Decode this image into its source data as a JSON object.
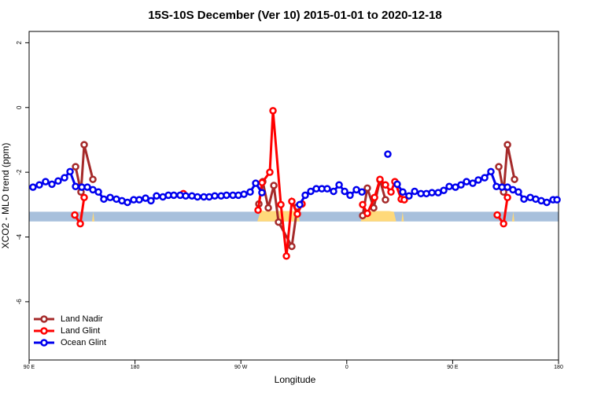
{
  "chart_data": {
    "type": "line",
    "title": "15S-10S December (Ver 10)   2015-01-01 to 2020-12-18",
    "xlabel": "Longitude",
    "ylabel": "XCO2 - MLO trend (ppm)",
    "xlim": [
      90,
      540
    ],
    "xticks": [
      {
        "value": 90,
        "label": "90 E"
      },
      {
        "value": 180,
        "label": "180"
      },
      {
        "value": 270,
        "label": "90 W"
      },
      {
        "value": 360,
        "label": "0"
      },
      {
        "value": 450,
        "label": "90 E"
      },
      {
        "value": 540,
        "label": "180"
      }
    ],
    "ylim": [
      -7.8,
      2.35
    ],
    "yticks": [
      2,
      0,
      -2,
      -4,
      -6
    ],
    "legend": "bottom-left",
    "band": {
      "color": "#a8c0dc",
      "ylim": [
        -3.52,
        -3.22
      ]
    },
    "land": {
      "color": "#ffd97a",
      "pieces": [
        {
          "x": [
            284,
            287,
            290,
            315,
            318,
            320
          ],
          "values": [
            -3.52,
            -3.17,
            -3.2,
            -3.2,
            -3.17,
            -3.52
          ]
        },
        {
          "x": [
            372,
            374,
            378,
            396,
            400,
            402
          ],
          "values": [
            -3.52,
            -3.22,
            -3.2,
            -3.2,
            -3.22,
            -3.52
          ]
        },
        {
          "x": [
            143.5,
            144.5,
            145.5
          ],
          "values": [
            -3.52,
            -3.22,
            -3.52
          ]
        },
        {
          "x": [
            406.5,
            407.5,
            408.5
          ],
          "values": [
            -3.52,
            -3.22,
            -3.52
          ]
        },
        {
          "x": [
            500.5,
            501.5,
            502.5
          ],
          "values": [
            -3.52,
            -3.22,
            -3.52
          ]
        }
      ]
    },
    "series": [
      {
        "name": "Land Nadir",
        "color": "#a52a2a",
        "pieces": [
          {
            "x": [
              129.5,
              134.1,
              136.8,
              144.2
            ],
            "values": [
              -1.83,
              -2.61,
              -1.15,
              -2.22
            ]
          },
          {
            "x": [
              285.3,
              288.6,
              293.3,
              298.0,
              302.0,
              313.3,
              318.0
            ],
            "values": [
              -2.98,
              -2.29,
              -3.1,
              -2.41,
              -3.54,
              -4.29,
              -3.07
            ]
          },
          {
            "x": [
              373.5,
              377.5,
              382.9,
              388.2,
              392.9
            ],
            "values": [
              -3.34,
              -2.49,
              -3.1,
              -2.24,
              -2.85
            ]
          },
          {
            "x": [
              489.2,
              493.3,
              496.6,
              502.6
            ],
            "values": [
              -1.83,
              -2.61,
              -1.15,
              -2.22
            ]
          }
        ]
      },
      {
        "name": "Land Glint",
        "color": "#ff0000",
        "pieces": [
          {
            "x": [
              128.8,
              133.5,
              136.8
            ],
            "values": [
              -3.32,
              -3.59,
              -2.78
            ]
          },
          {
            "x": [
              221.1
            ],
            "values": [
              -2.66
            ]
          },
          {
            "x": [
              284.6,
              288.0,
              294.6,
              297.3,
              304.0,
              308.7,
              313.3,
              318.0,
              322.0
            ],
            "values": [
              -3.17,
              -2.32,
              -2.0,
              -0.1,
              -3.0,
              -4.59,
              -2.9,
              -3.29,
              -2.98
            ]
          },
          {
            "x": [
              373.5,
              377.5,
              383.6,
              388.2,
              392.9,
              397.6,
              400.9,
              406.3,
              408.9
            ],
            "values": [
              -3.0,
              -3.27,
              -2.78,
              -2.22,
              -2.39,
              -2.61,
              -2.29,
              -2.83,
              -2.85
            ]
          },
          {
            "x": [
              487.9,
              493.3,
              496.6
            ],
            "values": [
              -3.32,
              -3.59,
              -2.78
            ]
          }
        ]
      },
      {
        "name": "Ocean Glint",
        "color": "#0000ee",
        "pieces": [
          {
            "x": [
              93.3,
              98.7,
              104.0,
              109.4,
              114.7,
              120.1,
              124.8,
              129.5,
              134.8,
              139.5,
              144.2,
              148.9,
              153.5,
              158.9,
              164.2,
              168.9,
              173.6,
              178.9,
              183.6,
              189.0,
              193.6,
              198.3,
              203.7,
              208.4,
              213.0,
              218.4,
              223.1,
              228.4,
              233.1,
              238.5,
              243.1,
              247.8,
              253.2,
              257.8,
              263.2,
              267.9,
              272.6,
              277.9,
              282.6,
              287.9
            ],
            "values": [
              -2.46,
              -2.39,
              -2.29,
              -2.37,
              -2.27,
              -2.17,
              -1.98,
              -2.44,
              -2.46,
              -2.46,
              -2.54,
              -2.61,
              -2.83,
              -2.78,
              -2.83,
              -2.88,
              -2.93,
              -2.85,
              -2.85,
              -2.8,
              -2.88,
              -2.73,
              -2.76,
              -2.71,
              -2.71,
              -2.71,
              -2.73,
              -2.73,
              -2.76,
              -2.76,
              -2.76,
              -2.73,
              -2.73,
              -2.71,
              -2.71,
              -2.71,
              -2.68,
              -2.61,
              -2.34,
              -2.63
            ]
          },
          {
            "x": [
              320.0,
              324.7,
              329.4,
              334.1,
              338.8,
              343.4,
              348.8,
              353.5,
              358.2,
              362.8,
              368.2,
              372.9
            ],
            "values": [
              -3.0,
              -2.71,
              -2.59,
              -2.51,
              -2.51,
              -2.51,
              -2.59,
              -2.39,
              -2.59,
              -2.71,
              -2.54,
              -2.61
            ]
          },
          {
            "x": [
              394.9
            ],
            "values": [
              -1.44
            ]
          },
          {
            "x": [
              402.9,
              407.6,
              412.9,
              417.7,
              423.0,
              427.7,
              432.4,
              437.7,
              442.4,
              447.1,
              452.4,
              457.1,
              461.8,
              467.1,
              471.8,
              477.2,
              482.5,
              487.2,
              491.9,
              496.6,
              501.2,
              505.9,
              510.6,
              516.0,
              520.6,
              525.3,
              530.0,
              535.4,
              538.7
            ],
            "values": [
              -2.37,
              -2.61,
              -2.73,
              -2.59,
              -2.66,
              -2.66,
              -2.63,
              -2.63,
              -2.56,
              -2.44,
              -2.46,
              -2.39,
              -2.29,
              -2.34,
              -2.24,
              -2.17,
              -1.98,
              -2.44,
              -2.46,
              -2.46,
              -2.54,
              -2.61,
              -2.83,
              -2.78,
              -2.83,
              -2.88,
              -2.93,
              -2.85,
              -2.85
            ]
          }
        ]
      }
    ]
  }
}
